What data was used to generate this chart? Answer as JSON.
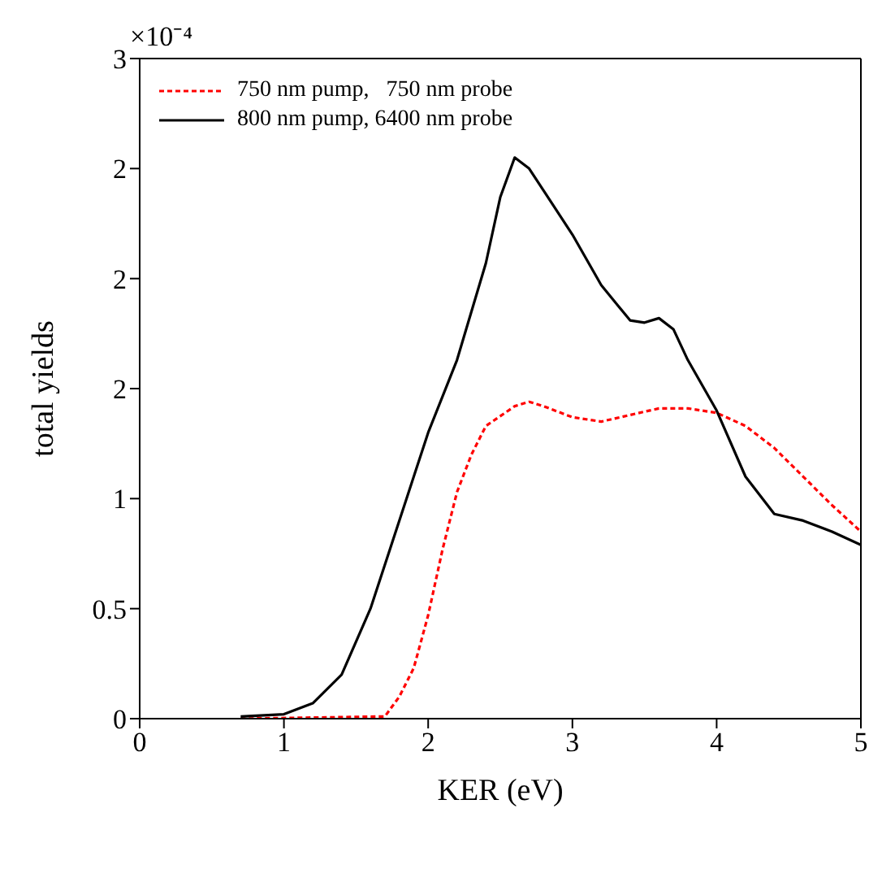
{
  "chart_data": {
    "type": "line",
    "xlabel": "KER (eV)",
    "ylabel": "total yields",
    "annotations": [
      "×10⁻⁴"
    ],
    "xlim": [
      0,
      5
    ],
    "xticks": [
      0,
      1,
      2,
      3,
      4,
      5
    ],
    "ylim": [
      0,
      3
    ],
    "yticks": [
      0,
      0.5,
      1,
      {
        "value": 1.5,
        "label": "2"
      },
      2,
      {
        "value": 2.5,
        "label": "2"
      },
      3
    ],
    "legend": "top left",
    "series": [
      {
        "name": "750 nm pump,   750 nm probe",
        "color": "#ff0000",
        "line_style": "dotted",
        "x": [
          0.7,
          1.7,
          1.8,
          1.9,
          2.0,
          2.1,
          2.2,
          2.3,
          2.4,
          2.6,
          2.7,
          2.8,
          3.0,
          3.2,
          3.4,
          3.6,
          3.8,
          4.0,
          4.2,
          4.4,
          4.6,
          4.8,
          5.0
        ],
        "values": [
          0,
          0.01,
          0.1,
          0.23,
          0.47,
          0.77,
          1.03,
          1.2,
          1.33,
          1.42,
          1.44,
          1.42,
          1.37,
          1.35,
          1.38,
          1.41,
          1.41,
          1.39,
          1.33,
          1.23,
          1.1,
          0.97,
          0.85
        ]
      },
      {
        "name": "800 nm pump, 6400 nm probe",
        "color": "#000000",
        "line_style": "solid",
        "x": [
          0.7,
          1.0,
          1.2,
          1.4,
          1.6,
          1.8,
          2.0,
          2.2,
          2.4,
          2.5,
          2.6,
          2.7,
          2.8,
          3.0,
          3.2,
          3.4,
          3.5,
          3.6,
          3.7,
          3.8,
          4.0,
          4.2,
          4.4,
          4.6,
          4.8,
          5.0
        ],
        "values": [
          0.01,
          0.02,
          0.07,
          0.2,
          0.5,
          0.9,
          1.3,
          1.63,
          2.07,
          2.37,
          2.55,
          2.5,
          2.4,
          2.2,
          1.97,
          1.81,
          1.8,
          1.82,
          1.77,
          1.63,
          1.4,
          1.1,
          0.93,
          0.9,
          0.85,
          0.79
        ]
      }
    ]
  }
}
